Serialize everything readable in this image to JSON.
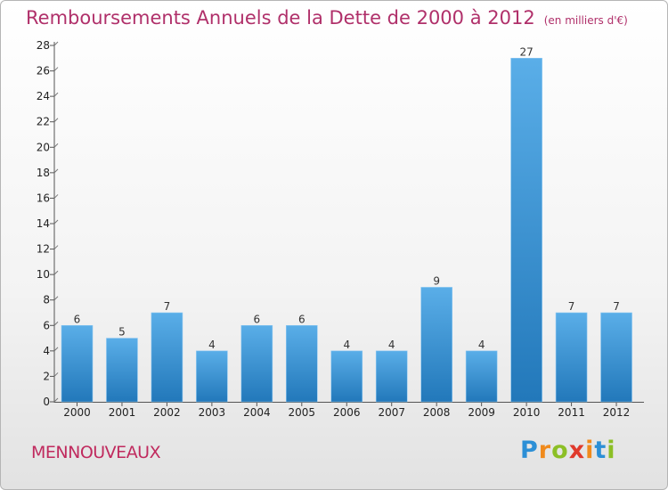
{
  "header": {
    "title": "Remboursements Annuels de la Dette de 2000 à 2012",
    "unit": "(en milliers d'€)"
  },
  "footer": {
    "commune": "MENNOUVEAUX",
    "logo_text": "Proxiti"
  },
  "colors": {
    "title": "#b0306a",
    "bar_light": "#5aaee8",
    "bar_dark": "#2278ba"
  },
  "chart_data": {
    "type": "bar",
    "title": "Remboursements Annuels de la Dette de 2000 à 2012",
    "subtitle": "(en milliers d'€)",
    "xlabel": "",
    "ylabel": "",
    "categories": [
      "2000",
      "2001",
      "2002",
      "2003",
      "2004",
      "2005",
      "2006",
      "2007",
      "2008",
      "2009",
      "2010",
      "2011",
      "2012"
    ],
    "values": [
      6,
      5,
      7,
      4,
      6,
      6,
      4,
      4,
      9,
      4,
      27,
      7,
      7
    ],
    "ylim": [
      0,
      28
    ],
    "yticks": [
      0,
      2,
      4,
      6,
      8,
      10,
      12,
      14,
      16,
      18,
      20,
      22,
      24,
      26,
      28
    ],
    "grid": false,
    "legend": "none",
    "data_labels": true
  }
}
